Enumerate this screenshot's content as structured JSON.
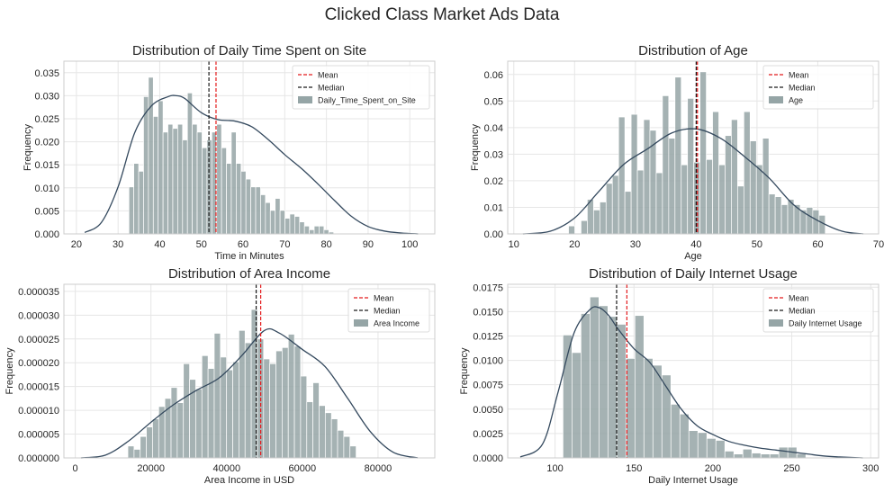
{
  "figure": {
    "suptitle": "Clicked Class Market Ads Data"
  },
  "colors": {
    "bar": "#95a5a6",
    "kde": "#34495e",
    "mean": "#e41a1c",
    "median": "#1a1a1a",
    "grid": "#e6e6e6",
    "axes_edge": "#cccccc"
  },
  "chart_data": [
    {
      "type": "histogram",
      "title": "Distribution of Daily Time Spent on Site",
      "xlabel": "Time in Minutes",
      "ylabel": "Frequency",
      "xlim": [
        17,
        106
      ],
      "ylim": [
        0,
        0.0375
      ],
      "xticks": [
        20,
        30,
        40,
        50,
        60,
        70,
        80,
        90,
        100
      ],
      "xtick_labels": [
        "20",
        "30",
        "40",
        "50",
        "60",
        "70",
        "80",
        "90",
        "100"
      ],
      "yticks": [
        0,
        0.005,
        0.01,
        0.015,
        0.02,
        0.025,
        0.03,
        0.035
      ],
      "ytick_labels": [
        "0.000",
        "0.005",
        "0.010",
        "0.015",
        "0.020",
        "0.025",
        "0.030",
        "0.035"
      ],
      "bins": {
        "start": 32.6,
        "width": 1.17
      },
      "values": [
        0.0102,
        0.0153,
        0.0136,
        0.0298,
        0.034,
        0.0255,
        0.0289,
        0.0221,
        0.0238,
        0.0229,
        0.0238,
        0.0204,
        0.0306,
        0.0238,
        0.0221,
        0.0187,
        0.0204,
        0.0221,
        0.0238,
        0.0187,
        0.0153,
        0.0221,
        0.0153,
        0.0136,
        0.0119,
        0.0102,
        0.0102,
        0.0085,
        0.0068,
        0.0051,
        0.0077,
        0.0051,
        0.0034,
        0.0043,
        0.0038,
        0.0026,
        0.0017,
        0.0009,
        0.0017,
        0.0017,
        0.0009,
        0.0004
      ],
      "kde": {
        "x": [
          22,
          26,
          30,
          34,
          38,
          42,
          44,
          46,
          50,
          54,
          58,
          62,
          66,
          70,
          74,
          78,
          82,
          86,
          90,
          94,
          98,
          102
        ],
        "y": [
          0.0003,
          0.0025,
          0.0102,
          0.022,
          0.0278,
          0.0298,
          0.03,
          0.0294,
          0.0263,
          0.0248,
          0.0245,
          0.0233,
          0.0205,
          0.0172,
          0.0142,
          0.0108,
          0.0072,
          0.0038,
          0.0016,
          0.0006,
          0.0002,
          0.0
        ]
      },
      "mean": 53.5,
      "median": 51.8,
      "legend": [
        "Mean",
        "Median",
        "Daily_Time_Spent_on_Site"
      ],
      "legend_position": "upper right"
    },
    {
      "type": "histogram",
      "title": "Distribution of Age",
      "xlabel": "Age",
      "ylabel": "Frequency",
      "xlim": [
        9,
        70
      ],
      "ylim": [
        0,
        0.065
      ],
      "xticks": [
        10,
        20,
        30,
        40,
        50,
        60,
        70
      ],
      "xtick_labels": [
        "10",
        "20",
        "30",
        "40",
        "50",
        "60",
        "70"
      ],
      "yticks": [
        0,
        0.01,
        0.02,
        0.03,
        0.04,
        0.05,
        0.06
      ],
      "ytick_labels": [
        "0.00",
        "0.01",
        "0.02",
        "0.03",
        "0.04",
        "0.05",
        "0.06"
      ],
      "bins": {
        "start": 19,
        "width": 1.03
      },
      "values": [
        0.003,
        0.0,
        0.005,
        0.013,
        0.009,
        0.012,
        0.019,
        0.022,
        0.044,
        0.016,
        0.045,
        0.024,
        0.043,
        0.039,
        0.023,
        0.052,
        0.036,
        0.059,
        0.026,
        0.051,
        0.027,
        0.061,
        0.028,
        0.046,
        0.026,
        0.037,
        0.043,
        0.018,
        0.046,
        0.035,
        0.026,
        0.036,
        0.015,
        0.014,
        0.011,
        0.013,
        0.011,
        0.009,
        0.01,
        0.009,
        0.007
      ],
      "kde": {
        "x": [
          11.5,
          16,
          20,
          24,
          28,
          32,
          36,
          40,
          44,
          48,
          52,
          56,
          60,
          64,
          67.5
        ],
        "y": [
          0.0,
          0.001,
          0.006,
          0.016,
          0.026,
          0.032,
          0.038,
          0.0395,
          0.036,
          0.029,
          0.021,
          0.011,
          0.005,
          0.001,
          0.0
        ]
      },
      "mean": 40.2,
      "median": 40.0,
      "legend": [
        "Mean",
        "Median",
        "Age"
      ],
      "legend_position": "upper right"
    },
    {
      "type": "histogram",
      "title": "Distribution of Area Income",
      "xlabel": "Area Income in USD",
      "ylabel": "Frequency",
      "xlim": [
        -3000,
        95000
      ],
      "ylim": [
        0,
        3.65e-05
      ],
      "xticks": [
        0,
        20000,
        40000,
        60000,
        80000
      ],
      "xtick_labels": [
        "0",
        "20000",
        "40000",
        "60000",
        "80000"
      ],
      "yticks": [
        0,
        5e-06,
        1e-05,
        1.5e-05,
        2e-05,
        2.5e-05,
        3e-05,
        3.5e-05
      ],
      "ytick_labels": [
        "0.000000",
        "0.000005",
        "0.000010",
        "0.000015",
        "0.000020",
        "0.000025",
        "0.000030",
        "0.000035"
      ],
      "bins": {
        "start": 13900,
        "width": 1630
      },
      "values": [
        2.5e-06,
        1.8e-06,
        4.5e-06,
        6.5e-06,
        8.2e-06,
        1.08e-05,
        1.25e-05,
        1.48e-05,
        1.16e-05,
        1.98e-05,
        1.65e-05,
        1.45e-05,
        2.15e-05,
        1.88e-05,
        2.62e-05,
        2.12e-05,
        1.85e-05,
        2.02e-05,
        2.68e-05,
        2.42e-05,
        3.12e-05,
        2.5e-05,
        2.08e-05,
        1.98e-05,
        2.25e-05,
        2.32e-05,
        2.6e-05,
        2.35e-05,
        1.72e-05,
        1.18e-05,
        1.58e-05,
        1.1e-05,
        9.5e-06,
        8.2e-06,
        5.8e-06,
        4.5e-06,
        2.5e-06
      ],
      "kde": {
        "x": [
          1500,
          8000,
          14000,
          20000,
          26000,
          32000,
          38000,
          44000,
          50000,
          54000,
          60000,
          66000,
          72000,
          78000,
          84000,
          90500
        ],
        "y": [
          0.0,
          6e-07,
          3.5e-06,
          7.5e-06,
          1.12e-05,
          1.42e-05,
          1.68e-05,
          2.15e-05,
          2.68e-05,
          2.62e-05,
          2.28e-05,
          1.92e-05,
          1.25e-05,
          5.5e-06,
          1.2e-06,
          0.0
        ]
      },
      "mean": 49000,
      "median": 47800,
      "legend": [
        "Mean",
        "Median",
        "Area Income"
      ],
      "legend_position": "upper right"
    },
    {
      "type": "histogram",
      "title": "Distribution of Daily Internet Usage",
      "xlabel": "Daily Internet Usage",
      "ylabel": "Frequency",
      "xlim": [
        70,
        305
      ],
      "ylim": [
        0,
        0.0178
      ],
      "xticks": [
        100,
        150,
        200,
        250,
        300
      ],
      "xtick_labels": [
        "100",
        "150",
        "200",
        "250",
        "300"
      ],
      "yticks": [
        0,
        0.0025,
        0.005,
        0.0075,
        0.01,
        0.0125,
        0.015,
        0.0175
      ],
      "ytick_labels": [
        "0.0000",
        "0.0025",
        "0.0050",
        "0.0075",
        "0.0100",
        "0.0125",
        "0.0150",
        "0.0175"
      ],
      "bins": {
        "start": 105,
        "width": 5.7
      },
      "values": [
        0.0126,
        0.0108,
        0.0148,
        0.0165,
        0.0156,
        0.0145,
        0.0137,
        0.0102,
        0.0146,
        0.0102,
        0.0095,
        0.0085,
        0.0055,
        0.0045,
        0.0028,
        0.0026,
        0.002,
        0.0018,
        0.0007,
        0.0004,
        0.0009,
        0.0005,
        0.0004,
        0.0004,
        0.0011,
        0.0011,
        0.0004
      ],
      "kde": {
        "x": [
          78,
          92,
          102,
          112,
          122,
          128,
          134,
          140,
          150,
          160,
          170,
          180,
          190,
          200,
          210,
          220,
          230,
          240,
          250,
          260,
          270,
          280,
          295
        ],
        "y": [
          0.0001,
          0.0014,
          0.0068,
          0.0128,
          0.0152,
          0.0154,
          0.0146,
          0.0132,
          0.0112,
          0.0098,
          0.0074,
          0.005,
          0.0033,
          0.0024,
          0.0017,
          0.0013,
          0.001,
          0.0008,
          0.0006,
          0.0004,
          0.0002,
          0.0001,
          0.0
        ]
      },
      "mean": 145.5,
      "median": 139,
      "legend": [
        "Mean",
        "Median",
        "Daily Internet Usage"
      ],
      "legend_position": "upper right"
    }
  ]
}
